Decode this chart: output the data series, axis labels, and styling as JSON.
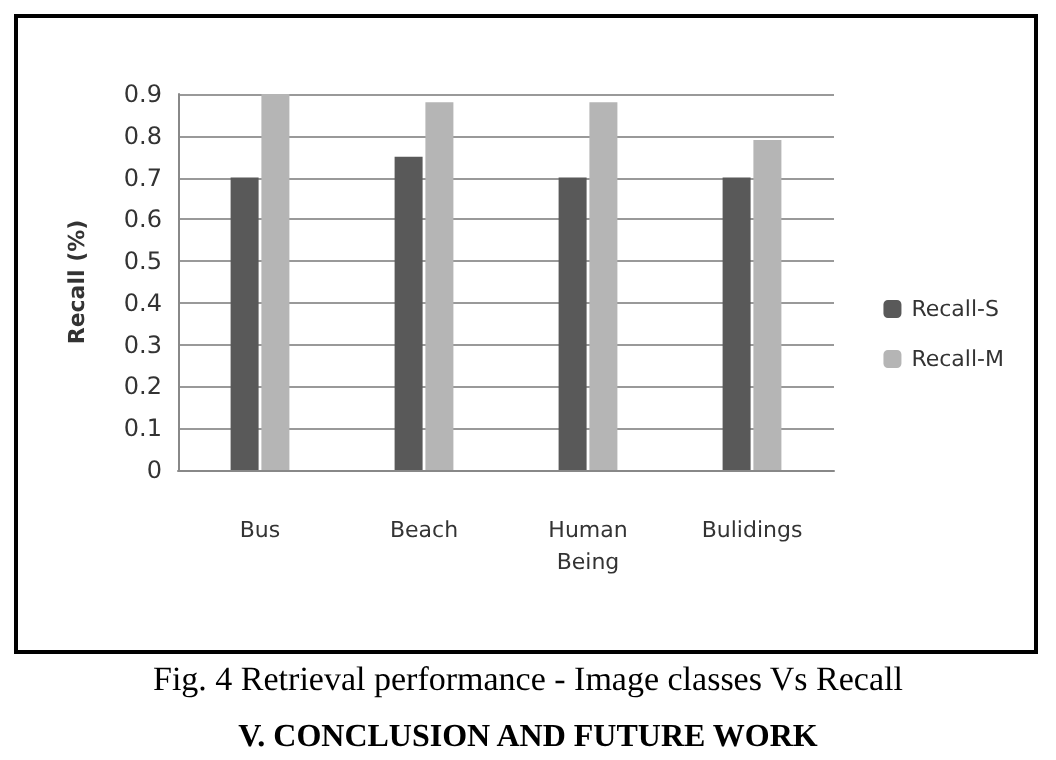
{
  "chart_data": {
    "type": "bar",
    "ylabel": "Recall (%)",
    "categories": [
      "Bus",
      "Beach",
      "Human Being",
      "Bulidings"
    ],
    "series": [
      {
        "name": "Recall-S",
        "color": "#595959",
        "values": [
          0.7,
          0.75,
          0.7,
          0.7
        ]
      },
      {
        "name": "Recall-M",
        "color": "#b5b5b5",
        "values": [
          0.9,
          0.88,
          0.88,
          0.79
        ]
      }
    ],
    "ylim": [
      0,
      0.9
    ],
    "yticks": [
      0,
      0.1,
      0.2,
      0.3,
      0.4,
      0.5,
      0.6,
      0.7,
      0.8,
      0.9
    ],
    "grid": "y",
    "legend": "right",
    "annotations": [
      "Fig. 4 Retrieval performance - Image classes Vs Recall",
      "V.    CONCLUSION AND FUTURE WORK"
    ]
  }
}
